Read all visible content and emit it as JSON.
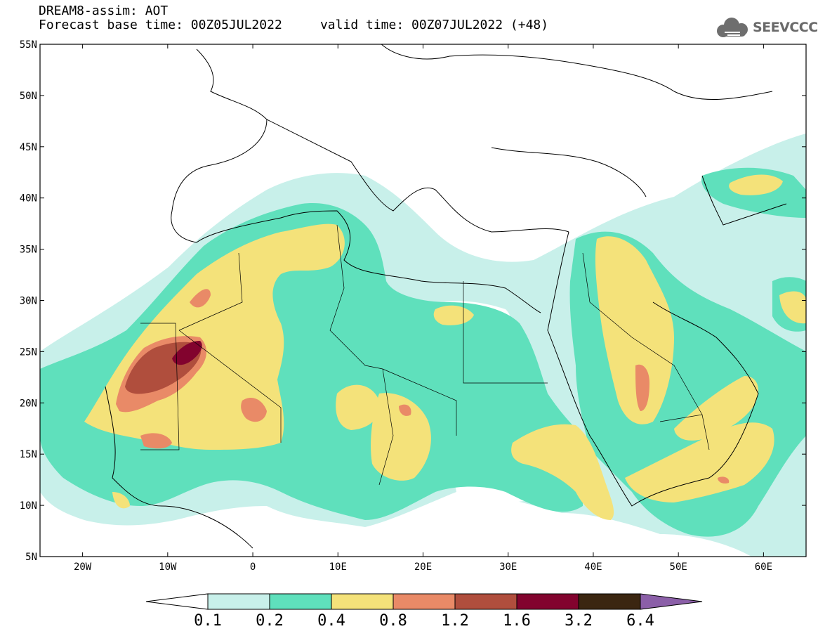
{
  "header": {
    "line1": "DREAM8-assim: AOT",
    "line2": "Forecast base time: 00Z05JUL2022     valid time: 00Z07JUL2022 (+48)"
  },
  "logo": {
    "text": "SEEVCCC",
    "icon": "cloud-icon"
  },
  "map": {
    "lat_labels": [
      "55N",
      "50N",
      "45N",
      "40N",
      "35N",
      "30N",
      "25N",
      "20N",
      "15N",
      "10N",
      "5N"
    ],
    "lon_labels": [
      "20W",
      "10W",
      "0",
      "10E",
      "20E",
      "30E",
      "40E",
      "50E",
      "60E"
    ],
    "lat_range": [
      5,
      55
    ],
    "lon_range": [
      -25,
      65
    ],
    "field": "AOT",
    "units": ""
  },
  "colorbar": {
    "levels": [
      "0.1",
      "0.2",
      "0.4",
      "0.8",
      "1.2",
      "1.6",
      "3.2",
      "6.4"
    ],
    "colors": [
      "#ffffff",
      "#c8f0ea",
      "#5fe0bc",
      "#f4e27a",
      "#e98a67",
      "#b04e3d",
      "#82032e",
      "#3b2611",
      "#8b5fa8"
    ]
  }
}
